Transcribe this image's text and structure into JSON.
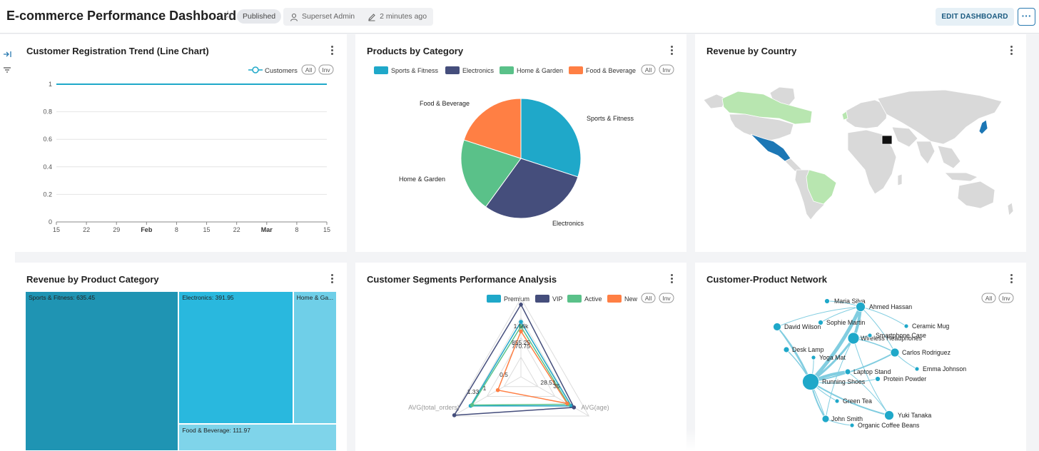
{
  "header": {
    "title": "E-commerce Performance Dashboard",
    "status": "Published",
    "owner": "Superset Admin",
    "modified": "2 minutes ago",
    "edit_label": "EDIT DASHBOARD",
    "more_label": "···"
  },
  "panels": {
    "registration": {
      "title": "Customer Registration Trend (Line Chart)",
      "legend": "Customers",
      "all_label": "All",
      "inv_label": "Inv"
    },
    "products": {
      "title": "Products by Category",
      "all_label": "All",
      "inv_label": "Inv"
    },
    "revenue_country": {
      "title": "Revenue by Country"
    },
    "revenue_product": {
      "title": "Revenue by Product Category"
    },
    "segments": {
      "title": "Customer Segments Performance Analysis",
      "all_label": "All",
      "inv_label": "Inv"
    },
    "network": {
      "title": "Customer-Product Network",
      "all_label": "All",
      "inv_label": "Inv"
    }
  },
  "colors": {
    "accent": "#1fa8c9",
    "navy": "#454e7c",
    "green": "#5ac189",
    "orange": "#ff7f44"
  },
  "chart_data": [
    {
      "id": "registration",
      "type": "line",
      "title": "Customer Registration Trend (Line Chart)",
      "series": [
        {
          "name": "Customers",
          "values": [
            1,
            1
          ]
        }
      ],
      "x_tick_labels": [
        "15",
        "22",
        "29",
        "Feb",
        "8",
        "15",
        "22",
        "Mar",
        "8",
        "15"
      ],
      "y_ticks": [
        "0",
        "0.2",
        "0.4",
        "0.6",
        "0.8",
        "1"
      ],
      "ylim": [
        0,
        1
      ]
    },
    {
      "id": "products",
      "type": "pie",
      "title": "Products by Category",
      "categories": [
        "Sports & Fitness",
        "Electronics",
        "Home & Garden",
        "Food & Beverage"
      ],
      "values": [
        30,
        30,
        20,
        20
      ],
      "colors": [
        "#1fa8c9",
        "#454e7c",
        "#5ac189",
        "#ff7f44"
      ]
    },
    {
      "id": "revenue_product",
      "type": "treemap",
      "title": "Revenue by Product Category",
      "categories": [
        "Sports & Fitness",
        "Electronics",
        "Home & Garden",
        "Food & Beverage"
      ],
      "values": [
        635.45,
        391.95,
        150,
        111.97
      ],
      "labels": [
        "Sports & Fitness: 635.45",
        "Electronics: 391.95",
        "Home & Ga...",
        "Food & Beverage: 111.97"
      ]
    },
    {
      "id": "segments",
      "type": "radar",
      "title": "Customer Segments Performance Analysis",
      "series_names": [
        "Premium",
        "VIP",
        "Active",
        "New"
      ],
      "axes": [
        "AVG(total_orders)",
        "AVG(age)"
      ],
      "point_labels": [
        "1.56k",
        "855.25",
        "770.75",
        "0.5",
        "1.33",
        "28.51",
        "35",
        "1"
      ]
    },
    {
      "id": "network",
      "type": "network",
      "title": "Customer-Product Network",
      "nodes": [
        "Maria Silva",
        "Ahmed Hassan",
        "David Wilson",
        "Sophie Martin",
        "Ceramic Mug",
        "Wireless Headphones",
        "Smartphone Case",
        "Desk Lamp",
        "Carlos Rodriguez",
        "Yoga Mat",
        "Laptop Stand",
        "Emma Johnson",
        "Protein Powder",
        "Running Shoes",
        "Green Tea",
        "John Smith",
        "Yuki Tanaka",
        "Organic Coffee Beans"
      ]
    }
  ]
}
